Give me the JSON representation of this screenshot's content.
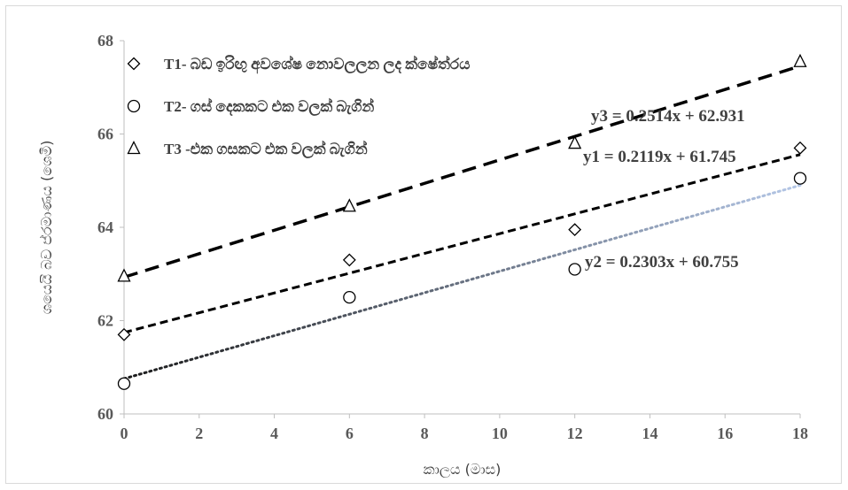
{
  "chart_data": {
    "type": "scatter",
    "xlabel": "කාලය (මාස)",
    "ylabel": "ශයෙයි බව ප්රමාණය (ශෙමී)",
    "xlim": [
      0,
      18
    ],
    "ylim": [
      60,
      68
    ],
    "xticks": [
      "0",
      "2",
      "4",
      "6",
      "8",
      "10",
      "12",
      "14",
      "16",
      "18"
    ],
    "yticks": [
      "60",
      "62",
      "64",
      "66",
      "68"
    ],
    "grid": false,
    "legend_position": "top-left",
    "series": [
      {
        "name": "T1- බඩ ඉරිඟු අවශේෂ නොවලලන ලද ක්ෂේත්රය",
        "marker": "diamond",
        "x": [
          0,
          6,
          12,
          18
        ],
        "y": [
          61.7,
          63.3,
          63.95,
          65.7
        ],
        "trend": {
          "slope": 0.2119,
          "intercept": 61.745,
          "equation": "y1 = 0.2119x + 61.745",
          "dash": "short-dash",
          "color": "#000000"
        }
      },
      {
        "name": "T2- ගස් දෙකකට එක වලක් බැගින්",
        "marker": "circle",
        "x": [
          0,
          6,
          12,
          18
        ],
        "y": [
          60.65,
          62.5,
          63.1,
          65.05
        ],
        "trend": {
          "slope": 0.2303,
          "intercept": 60.755,
          "equation": "y2 = 0.2303x + 60.755",
          "dash": "dotted",
          "color_start": "#1a1a1a",
          "color_end": "#b4c7e7"
        }
      },
      {
        "name": "T3 -එක ගසකට එක වලක් බැගින්",
        "marker": "triangle",
        "x": [
          0,
          6,
          12,
          18
        ],
        "y": [
          62.95,
          64.45,
          65.8,
          67.55
        ],
        "trend": {
          "slope": 0.2514,
          "intercept": 62.931,
          "equation": "y3 = 0.2514x + 62.931",
          "dash": "long-dash",
          "color": "#000000"
        }
      }
    ]
  }
}
